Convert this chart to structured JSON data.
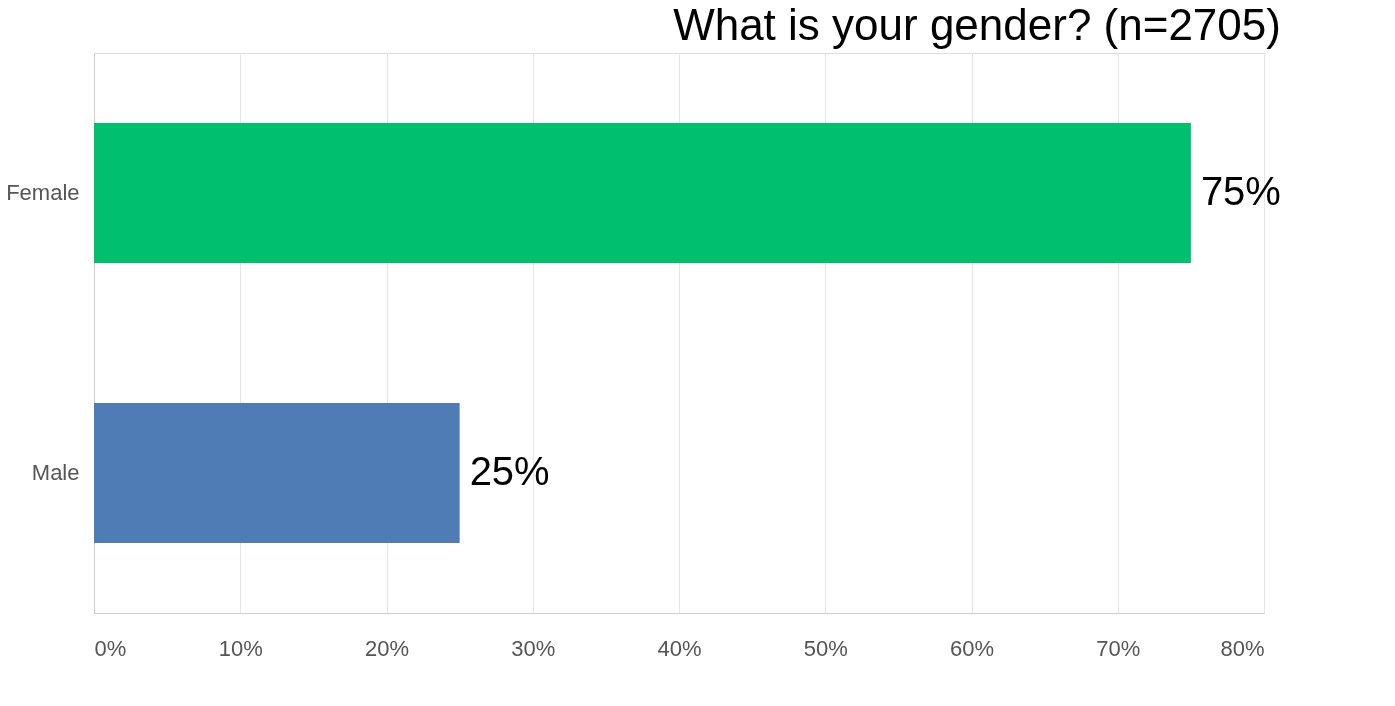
{
  "chart_data": {
    "type": "bar",
    "orientation": "horizontal",
    "title": "What is your gender? (n=2705)",
    "categories": [
      "Female",
      "Male"
    ],
    "values": [
      75,
      25
    ],
    "colors": [
      "#00bf6f",
      "#507cb6"
    ],
    "value_labels": [
      "75%",
      "25%"
    ],
    "xlim": [
      0,
      80
    ],
    "xticks": [
      {
        "value": 0,
        "label": "0%"
      },
      {
        "value": 10,
        "label": "10%"
      },
      {
        "value": 20,
        "label": "20%"
      },
      {
        "value": 30,
        "label": "30%"
      },
      {
        "value": 40,
        "label": "40%"
      },
      {
        "value": 50,
        "label": "50%"
      },
      {
        "value": 60,
        "label": "60%"
      },
      {
        "value": 70,
        "label": "70%"
      },
      {
        "value": 80,
        "label": "80%"
      }
    ],
    "grid": "x"
  }
}
